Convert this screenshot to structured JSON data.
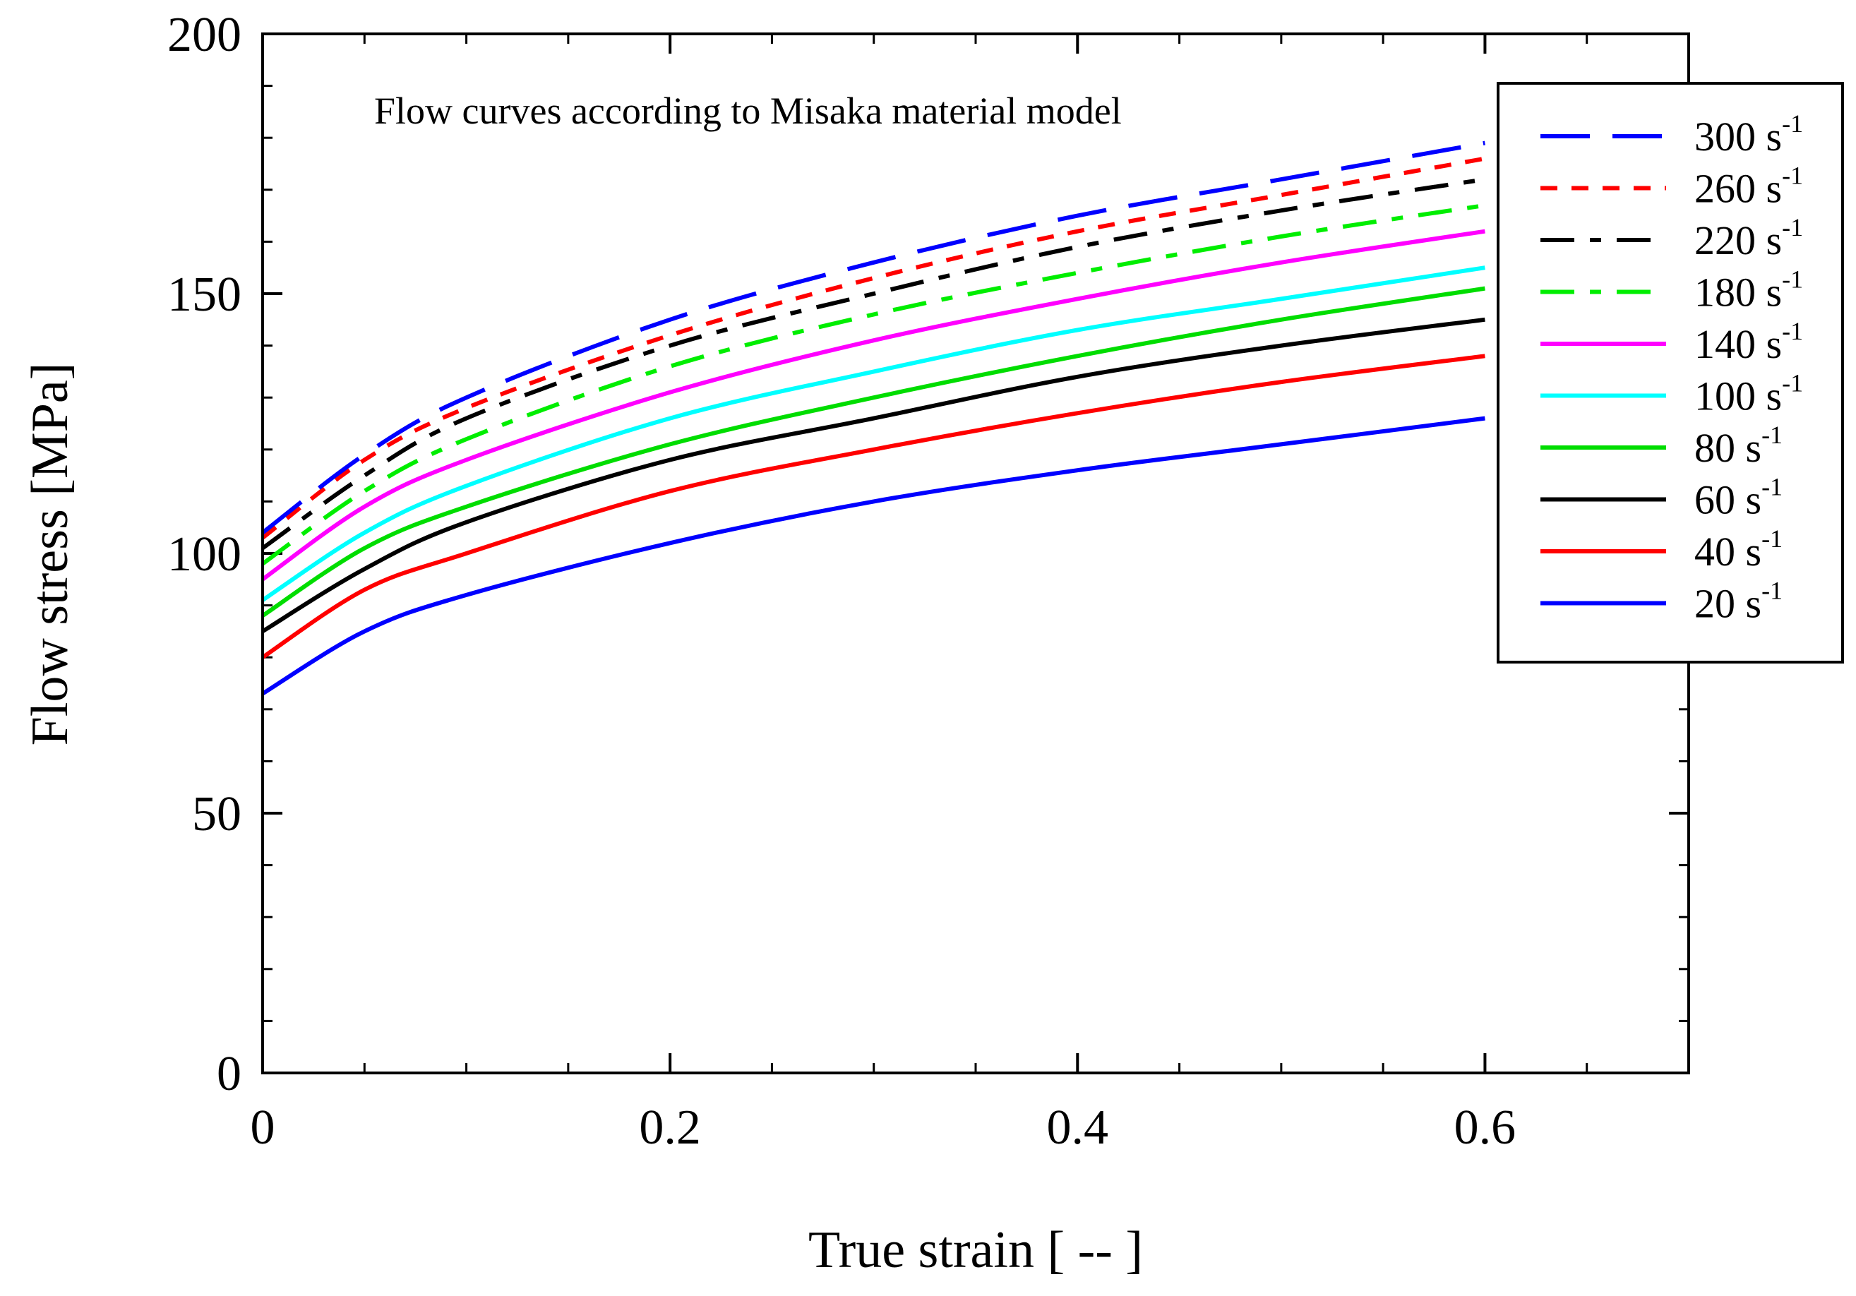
{
  "chart_data": {
    "type": "line",
    "title": "Flow curves according to Misaka material model",
    "xlabel": "True strain [ -- ]",
    "ylabel": "Flow stress [MPa]",
    "xlim": [
      0,
      0.7
    ],
    "ylim": [
      0,
      200
    ],
    "xticks": [
      0,
      0.2,
      0.4,
      0.6
    ],
    "xtick_labels": [
      "0",
      "0.2",
      "0.4",
      "0.6"
    ],
    "yticks": [
      0,
      50,
      100,
      150,
      200
    ],
    "ytick_labels": [
      "0",
      "50",
      "100",
      "150",
      "200"
    ],
    "grid": false,
    "legend_position": "top-right",
    "x": [
      0,
      0.05,
      0.1,
      0.2,
      0.3,
      0.4,
      0.5,
      0.6
    ],
    "series": [
      {
        "name": "300",
        "unit": "s",
        "exponent": "-1",
        "color": "#0000ff",
        "style": "long-dash",
        "values": [
          104,
          119,
          130,
          145,
          156,
          165,
          172,
          179
        ]
      },
      {
        "name": "260",
        "unit": "s",
        "exponent": "-1",
        "color": "#ff0000",
        "style": "short-dash",
        "values": [
          103,
          118,
          128,
          142,
          153,
          162,
          169,
          176
        ]
      },
      {
        "name": "220",
        "unit": "s",
        "exponent": "-1",
        "color": "#000000",
        "style": "dash-dot",
        "values": [
          101,
          115,
          126,
          140,
          150,
          159,
          166,
          172
        ]
      },
      {
        "name": "180",
        "unit": "s",
        "exponent": "-1",
        "color": "#00ee00",
        "style": "dash-dot",
        "values": [
          98,
          112,
          122,
          136,
          146,
          154,
          161,
          167
        ]
      },
      {
        "name": "140",
        "unit": "s",
        "exponent": "-1",
        "color": "#ff00ff",
        "style": "solid",
        "values": [
          95,
          109,
          118,
          131,
          141,
          149,
          156,
          162
        ]
      },
      {
        "name": "100",
        "unit": "s",
        "exponent": "-1",
        "color": "#00ffff",
        "style": "solid",
        "values": [
          91,
          104,
          113,
          126,
          135,
          143,
          149,
          155
        ]
      },
      {
        "name": "80",
        "unit": "s",
        "exponent": "-1",
        "color": "#00dd00",
        "style": "solid",
        "values": [
          88,
          101,
          109,
          121,
          130,
          138,
          145,
          151
        ]
      },
      {
        "name": "60",
        "unit": "s",
        "exponent": "-1",
        "color": "#000000",
        "style": "solid",
        "values": [
          85,
          97,
          106,
          118,
          126,
          134,
          140,
          145
        ]
      },
      {
        "name": "40",
        "unit": "s",
        "exponent": "-1",
        "color": "#ff0000",
        "style": "solid",
        "values": [
          80,
          93,
          100,
          112,
          120,
          127,
          133,
          138
        ]
      },
      {
        "name": "20",
        "unit": "s",
        "exponent": "-1",
        "color": "#0000ff",
        "style": "solid",
        "values": [
          73,
          85,
          92,
          102,
          110,
          116,
          121,
          126
        ]
      }
    ]
  }
}
